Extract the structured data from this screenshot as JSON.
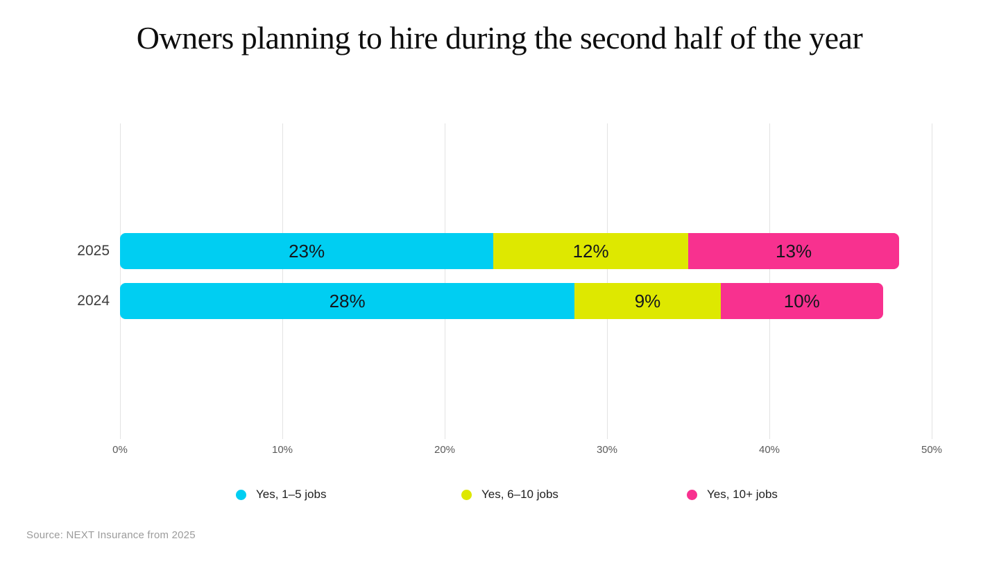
{
  "chart_data": {
    "type": "bar",
    "orientation": "horizontal",
    "stacked": true,
    "title": "Owners planning to hire during the second half of the year",
    "categories": [
      "2025",
      "2024"
    ],
    "series": [
      {
        "name": "Yes, 1–5 jobs",
        "color": "#00CEF2",
        "values": [
          23,
          28
        ],
        "labels": [
          "23%",
          "28%"
        ]
      },
      {
        "name": "Yes, 6–10 jobs",
        "color": "#DEE800",
        "values": [
          12,
          9
        ],
        "labels": [
          "12%",
          "9%"
        ]
      },
      {
        "name": "Yes, 10+ jobs",
        "color": "#F8318F",
        "values": [
          13,
          10
        ],
        "labels": [
          "13%",
          "10%"
        ]
      }
    ],
    "x_axis": {
      "min": 0,
      "max": 50,
      "tick_step": 10,
      "tick_labels": [
        "0%",
        "10%",
        "20%",
        "30%",
        "40%",
        "50%"
      ],
      "grid": true
    },
    "legend": {
      "position": "bottom"
    },
    "source": "Source: NEXT Insurance from 2025"
  }
}
